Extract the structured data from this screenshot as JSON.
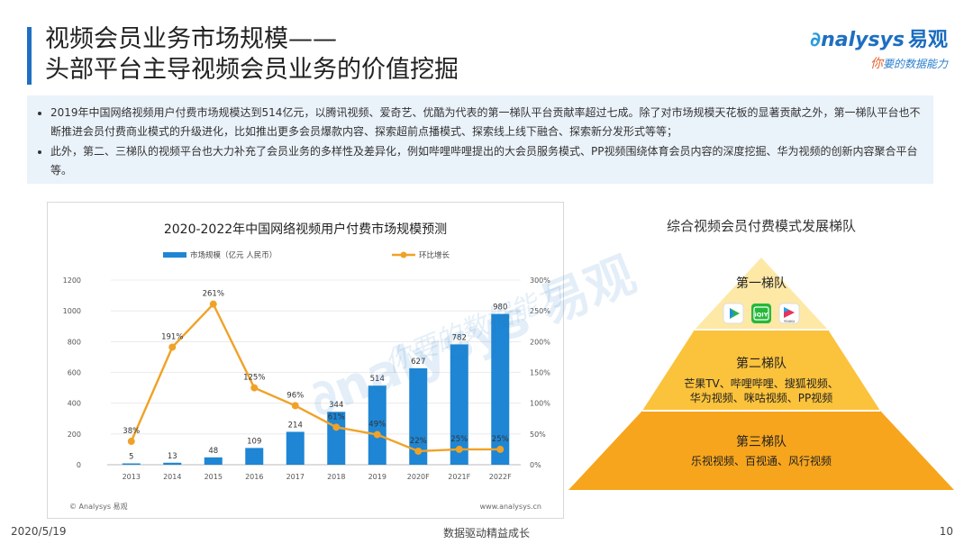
{
  "header": {
    "title_line1": "视频会员业务市场规模——",
    "title_line2": "头部平台主导视频会员业务的价值挖掘"
  },
  "logo": {
    "brand_swirl": "∂",
    "brand_latin": "nalysys",
    "brand_cn": "易观",
    "tagline_first": "你",
    "tagline_rest": "要的数据能力"
  },
  "summary": {
    "bullets": [
      "2019年中国网络视频用户付费市场规模达到514亿元，以腾讯视频、爱奇艺、优酷为代表的第一梯队平台贡献率超过七成。除了对市场规模天花板的显著贡献之外，第一梯队平台也不断推进会员付费商业模式的升级进化，比如推出更多会员爆款内容、探索超前点播模式、探索线上线下融合、探索新分发形式等等；",
      "此外，第二、三梯队的视频平台也大力补充了会员业务的多样性及差异化，例如哔哩哔哩提出的大会员服务模式、PP视频围绕体育会员内容的深度挖掘、华为视频的创新内容聚合平台等。"
    ]
  },
  "chart_data": {
    "type": "bar+line",
    "title": "2020-2022年中国网络视频用户付费市场规模预测",
    "categories": [
      "2013",
      "2014",
      "2015",
      "2016",
      "2017",
      "2018",
      "2019",
      "2020F",
      "2021F",
      "2022F"
    ],
    "series": [
      {
        "name": "市场规模（亿元 人民币）",
        "type": "bar",
        "axis": "left",
        "values": [
          5,
          13,
          48,
          109,
          214,
          344,
          514,
          627,
          782,
          980
        ],
        "labels": [
          "5",
          "13",
          "48",
          "109",
          "214",
          "344",
          "514",
          "627",
          "782",
          "980"
        ]
      },
      {
        "name": "环比增长",
        "type": "line",
        "axis": "right",
        "values": [
          38,
          191,
          261,
          125,
          96,
          61,
          49,
          22,
          25,
          25
        ],
        "labels": [
          "38%",
          "191%",
          "261%",
          "125%",
          "96%",
          "61%",
          "49%",
          "22%",
          "25%",
          "25%"
        ]
      }
    ],
    "left_axis": {
      "ylim": [
        0,
        1200
      ],
      "ticks": [
        "0",
        "200",
        "400",
        "600",
        "800",
        "1000",
        "1200"
      ]
    },
    "right_axis": {
      "ylim": [
        0,
        300
      ],
      "ticks": [
        "0%",
        "50%",
        "100%",
        "150%",
        "200%",
        "250%",
        "300%"
      ]
    },
    "source_left": "© Analysys 易观",
    "source_right": "www.analysys.cn",
    "colors": {
      "bar": "#1e86d4",
      "line": "#f0a227"
    },
    "watermark": "易观",
    "watermark_sub": "你要的数据能力"
  },
  "pyramid": {
    "title": "综合视频会员付费模式发展梯队",
    "tier1": {
      "label": "第一梯队",
      "apps": [
        "腾讯视频",
        "爱奇艺",
        "优酷"
      ],
      "app_badges": [
        "▶",
        "iQIY",
        "YOUKU"
      ]
    },
    "tier2": {
      "label": "第二梯队",
      "line1": "芒果TV、哔哩哔哩、搜狐视频、",
      "line2": "华为视频、咪咕视频、PP视频"
    },
    "tier3": {
      "label": "第三梯队",
      "line1": "乐视视频、百视通、风行视频"
    },
    "colors": {
      "tier1": "#fde8a6",
      "tier2": "#fbc23b",
      "tier3": "#f7a51c"
    }
  },
  "footer": {
    "date": "2020/5/19",
    "slogan": "数据驱动精益成长",
    "page": "10"
  }
}
